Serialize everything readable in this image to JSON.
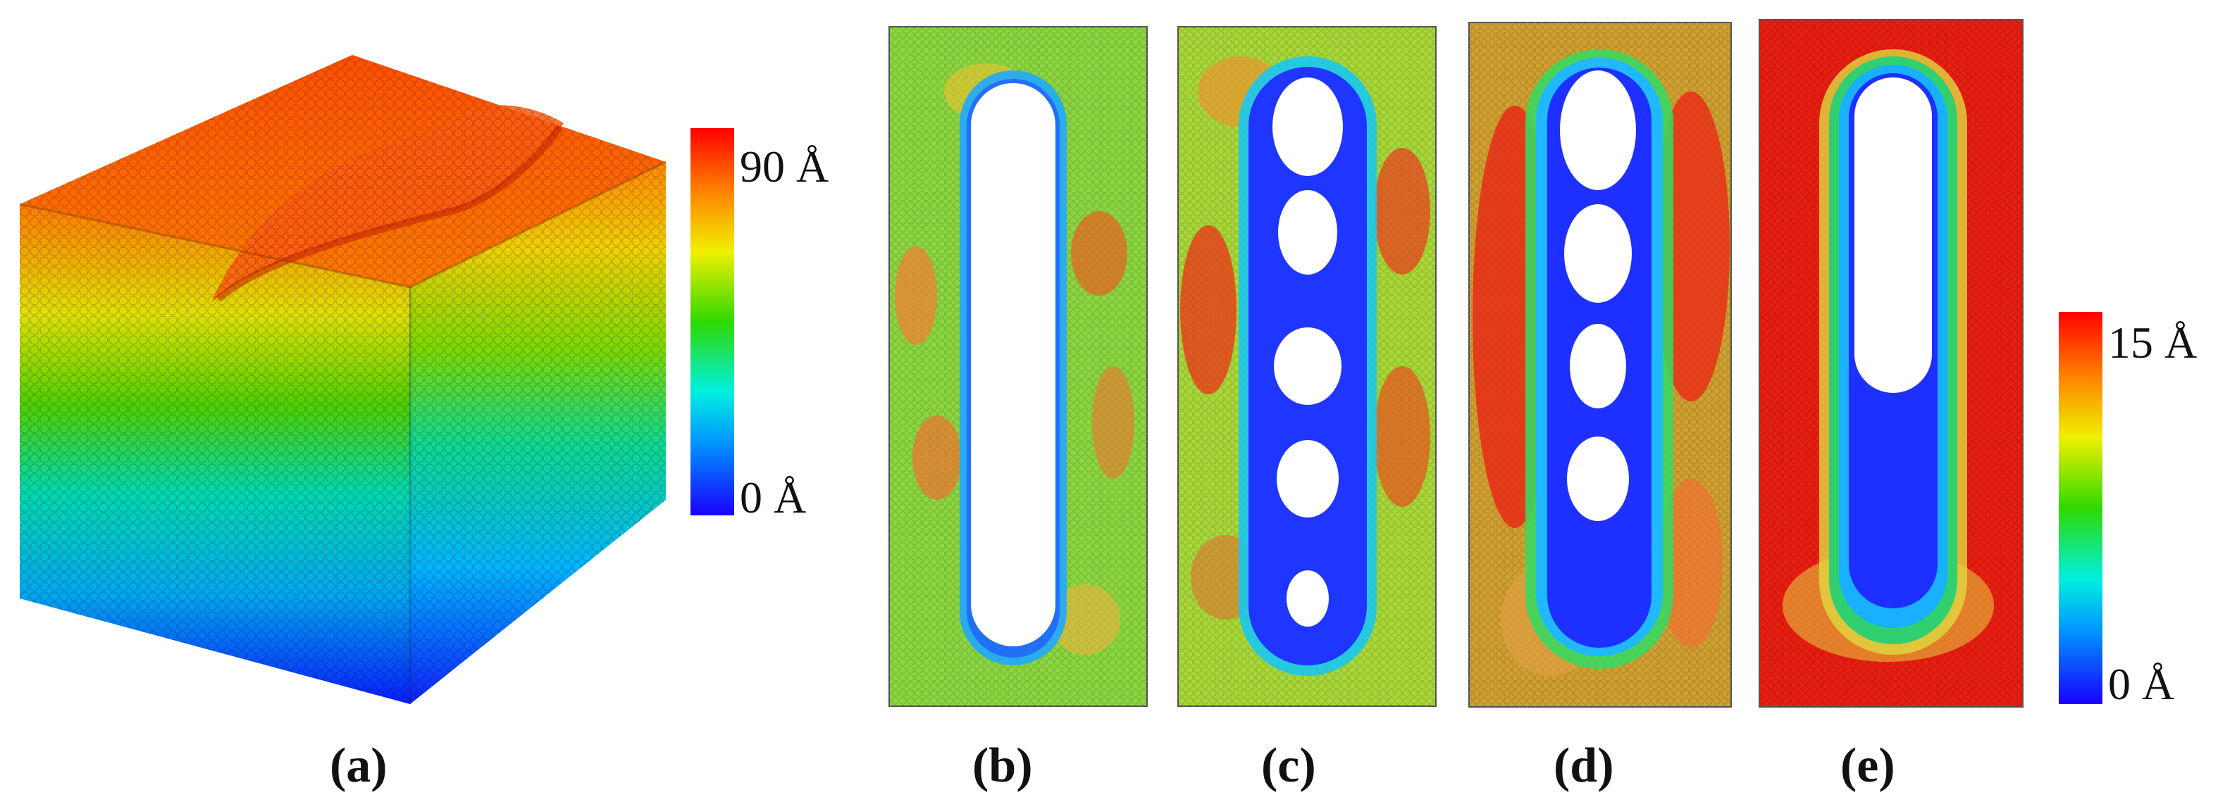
{
  "panels": [
    {
      "label": "(a)"
    },
    {
      "label": "(b)"
    },
    {
      "label": "(c)"
    },
    {
      "label": "(d)"
    },
    {
      "label": "(e)"
    }
  ],
  "colorbar_a": {
    "max_label": "90 Å",
    "min_label": "0 Å"
  },
  "colorbar_b": {
    "max_label": "15 Å",
    "min_label": "0 Å"
  },
  "colors": {
    "bar_stops": [
      "#1a00ff",
      "#00a0ff",
      "#00ffe0",
      "#40e000",
      "#f0f000",
      "#ff8000",
      "#ff0000"
    ],
    "box_top": "#ff6a00",
    "box_low": "#0a2bff"
  }
}
